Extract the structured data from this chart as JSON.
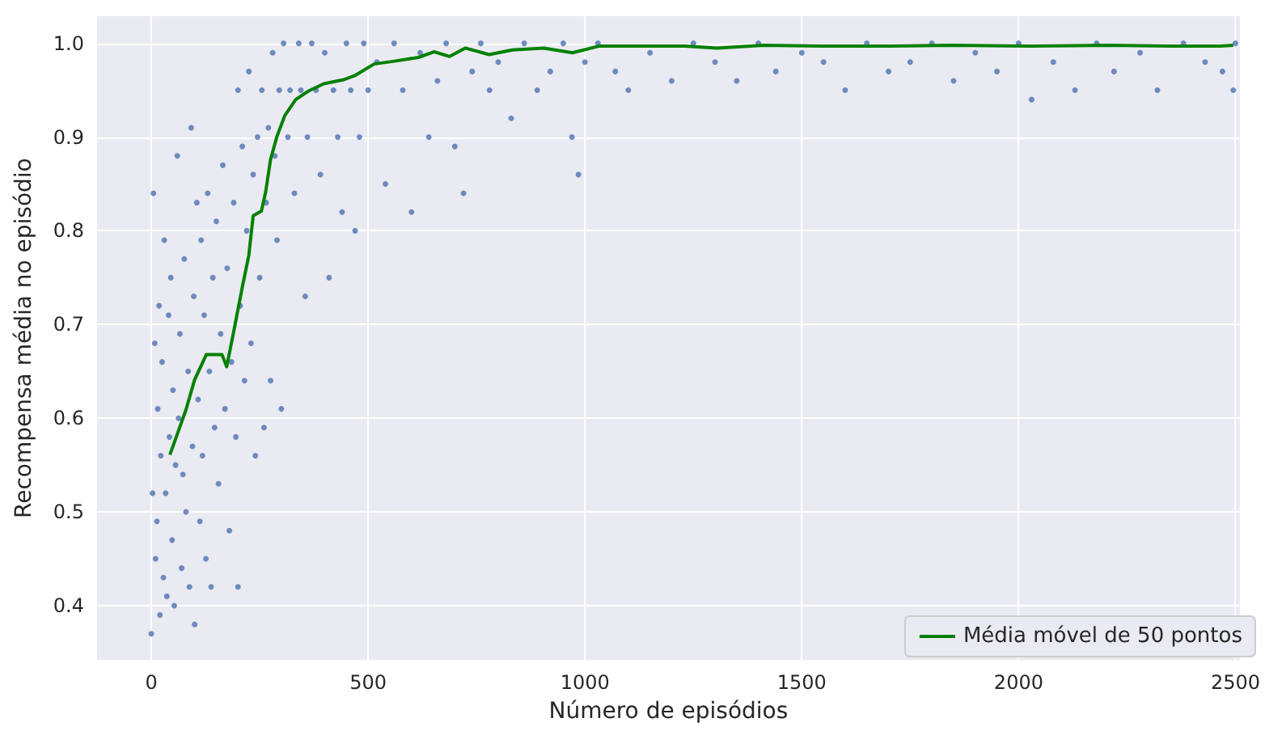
{
  "chart_data": {
    "type": "scatter",
    "xlabel": "Número de episódios",
    "ylabel": "Recompensa média no episódio",
    "xlim": [
      -125,
      2510
    ],
    "ylim": [
      0.342,
      1.029
    ],
    "xticks": [
      0,
      500,
      1000,
      1500,
      2000,
      2500
    ],
    "yticks": [
      {
        "value": 0.4,
        "label": "0.4"
      },
      {
        "value": 0.5,
        "label": "0.5"
      },
      {
        "value": 0.6,
        "label": "0.6"
      },
      {
        "value": 0.7,
        "label": "0.7"
      },
      {
        "value": 0.8,
        "label": "0.8"
      },
      {
        "value": 0.9,
        "label": "0.9"
      },
      {
        "value": 1,
        "label": "1.0"
      }
    ],
    "grid": true,
    "legend": "bottom right",
    "series": [
      {
        "marker": "circle",
        "color": "#4c72b0",
        "x": [
          0,
          3,
          5,
          8,
          10,
          13,
          15,
          18,
          20,
          22,
          25,
          28,
          30,
          33,
          36,
          40,
          42,
          45,
          48,
          50,
          53,
          56,
          60,
          63,
          66,
          70,
          73,
          76,
          80,
          85,
          88,
          92,
          95,
          98,
          100,
          105,
          108,
          112,
          115,
          118,
          122,
          126,
          130,
          134,
          138,
          142,
          146,
          150,
          155,
          160,
          165,
          170,
          175,
          180,
          185,
          190,
          195,
          200,
          200,
          205,
          210,
          215,
          220,
          225,
          230,
          235,
          240,
          245,
          250,
          255,
          260,
          265,
          270,
          275,
          280,
          285,
          290,
          295,
          300,
          305,
          315,
          320,
          330,
          340,
          345,
          355,
          360,
          370,
          380,
          390,
          400,
          410,
          420,
          430,
          440,
          450,
          460,
          470,
          480,
          490,
          500,
          520,
          540,
          560,
          580,
          600,
          620,
          640,
          660,
          680,
          700,
          720,
          740,
          760,
          780,
          800,
          830,
          860,
          890,
          920,
          950,
          970,
          985,
          1000,
          1030,
          1070,
          1100,
          1150,
          1200,
          1250,
          1300,
          1350,
          1400,
          1440,
          1500,
          1550,
          1600,
          1650,
          1700,
          1750,
          1800,
          1850,
          1900,
          1950,
          2000,
          2030,
          2080,
          2130,
          2180,
          2220,
          2280,
          2320,
          2380,
          2430,
          2470,
          2495,
          2500
        ],
        "values": [
          0.37,
          0.52,
          0.84,
          0.68,
          0.45,
          0.49,
          0.61,
          0.72,
          0.39,
          0.56,
          0.66,
          0.43,
          0.79,
          0.52,
          0.41,
          0.71,
          0.58,
          0.75,
          0.47,
          0.63,
          0.4,
          0.55,
          0.88,
          0.6,
          0.69,
          0.44,
          0.54,
          0.77,
          0.5,
          0.65,
          0.42,
          0.91,
          0.57,
          0.73,
          0.38,
          0.83,
          0.62,
          0.49,
          0.79,
          0.56,
          0.71,
          0.45,
          0.84,
          0.65,
          0.42,
          0.75,
          0.59,
          0.81,
          0.53,
          0.69,
          0.87,
          0.61,
          0.76,
          0.48,
          0.66,
          0.83,
          0.58,
          0.95,
          0.42,
          0.72,
          0.89,
          0.64,
          0.8,
          0.97,
          0.68,
          0.86,
          0.56,
          0.9,
          0.75,
          0.95,
          0.59,
          0.83,
          0.91,
          0.64,
          0.99,
          0.88,
          0.79,
          0.95,
          0.61,
          1.0,
          0.9,
          0.95,
          0.84,
          1.0,
          0.95,
          0.73,
          0.9,
          1.0,
          0.95,
          0.86,
          0.99,
          0.75,
          0.95,
          0.9,
          0.82,
          1.0,
          0.95,
          0.8,
          0.9,
          1.0,
          0.95,
          0.98,
          0.85,
          1.0,
          0.95,
          0.82,
          0.99,
          0.9,
          0.96,
          1.0,
          0.89,
          0.84,
          0.97,
          1.0,
          0.95,
          0.98,
          0.92,
          1.0,
          0.95,
          0.97,
          1.0,
          0.9,
          0.86,
          0.98,
          1.0,
          0.97,
          0.95,
          0.99,
          0.96,
          1.0,
          0.98,
          0.96,
          1.0,
          0.97,
          0.99,
          0.98,
          0.95,
          1.0,
          0.97,
          0.98,
          1.0,
          0.96,
          0.99,
          0.97,
          1.0,
          0.94,
          0.98,
          0.95,
          1.0,
          0.97,
          0.99,
          0.95,
          1.0,
          0.98,
          0.97,
          0.95,
          1.0
        ]
      },
      {
        "type": "line",
        "marker": "none",
        "name": "Média móvel de 50 pontos",
        "color": "#008000",
        "x": [
          43,
          80,
          100,
          127,
          163,
          174,
          192,
          210,
          225,
          235,
          254,
          264,
          275,
          290,
          308,
          333,
          362,
          398,
          442,
          471,
          514,
          561,
          616,
          652,
          688,
          724,
          779,
          833,
          905,
          971,
          1032,
          1123,
          1231,
          1304,
          1412,
          1557,
          1702,
          1847,
          2028,
          2209,
          2354,
          2463,
          2495
        ],
        "values": [
          0.561,
          0.609,
          0.641,
          0.668,
          0.668,
          0.655,
          0.697,
          0.74,
          0.774,
          0.816,
          0.821,
          0.842,
          0.876,
          0.901,
          0.923,
          0.94,
          0.949,
          0.957,
          0.961,
          0.966,
          0.978,
          0.981,
          0.985,
          0.991,
          0.986,
          0.995,
          0.988,
          0.993,
          0.995,
          0.99,
          0.997,
          0.997,
          0.997,
          0.995,
          0.998,
          0.997,
          0.997,
          0.998,
          0.997,
          0.998,
          0.997,
          0.997,
          0.998
        ]
      }
    ]
  }
}
